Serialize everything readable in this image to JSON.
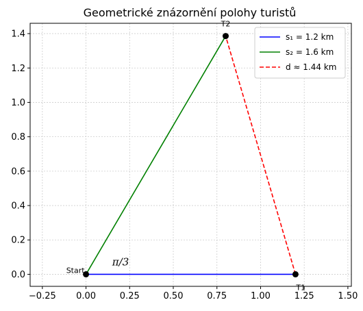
{
  "chart_data": {
    "type": "line",
    "title": "Geometrické znázornění polohy turistů",
    "xlabel": "",
    "ylabel": "",
    "xlim": [
      -0.32,
      1.52
    ],
    "ylim": [
      -0.07,
      1.46
    ],
    "xticks": [
      -0.25,
      0.0,
      0.25,
      0.5,
      0.75,
      1.0,
      1.25,
      1.5
    ],
    "xtick_labels": [
      "−0.25",
      "0.00",
      "0.25",
      "0.50",
      "0.75",
      "1.00",
      "1.25",
      "1.50"
    ],
    "yticks": [
      0.0,
      0.2,
      0.4,
      0.6,
      0.8,
      1.0,
      1.2,
      1.4
    ],
    "ytick_labels": [
      "0.0",
      "0.2",
      "0.4",
      "0.6",
      "0.8",
      "1.0",
      "1.2",
      "1.4"
    ],
    "grid": true,
    "legend_position": "top-right",
    "series": [
      {
        "name": "s1",
        "legend": "s₁ = 1.2 km",
        "color": "#0000ff",
        "dash": "solid",
        "x": [
          0.0,
          1.2
        ],
        "y": [
          0.0,
          0.0
        ]
      },
      {
        "name": "s2",
        "legend": "s₂ = 1.6 km",
        "color": "#008000",
        "dash": "solid",
        "x": [
          0.0,
          0.8
        ],
        "y": [
          0.0,
          1.386
        ]
      },
      {
        "name": "d",
        "legend": "d ≈ 1.44 km",
        "color": "#ff0000",
        "dash": "dashed",
        "x": [
          1.2,
          0.8
        ],
        "y": [
          0.0,
          1.386
        ]
      }
    ],
    "points": [
      {
        "label": "Start",
        "x": 0.0,
        "y": 0.0
      },
      {
        "label": "T1",
        "x": 1.2,
        "y": 0.0
      },
      {
        "label": "T2",
        "x": 0.8,
        "y": 1.386
      }
    ],
    "annotations": [
      {
        "text": "π/3",
        "x": 0.15,
        "y": 0.06
      }
    ]
  }
}
